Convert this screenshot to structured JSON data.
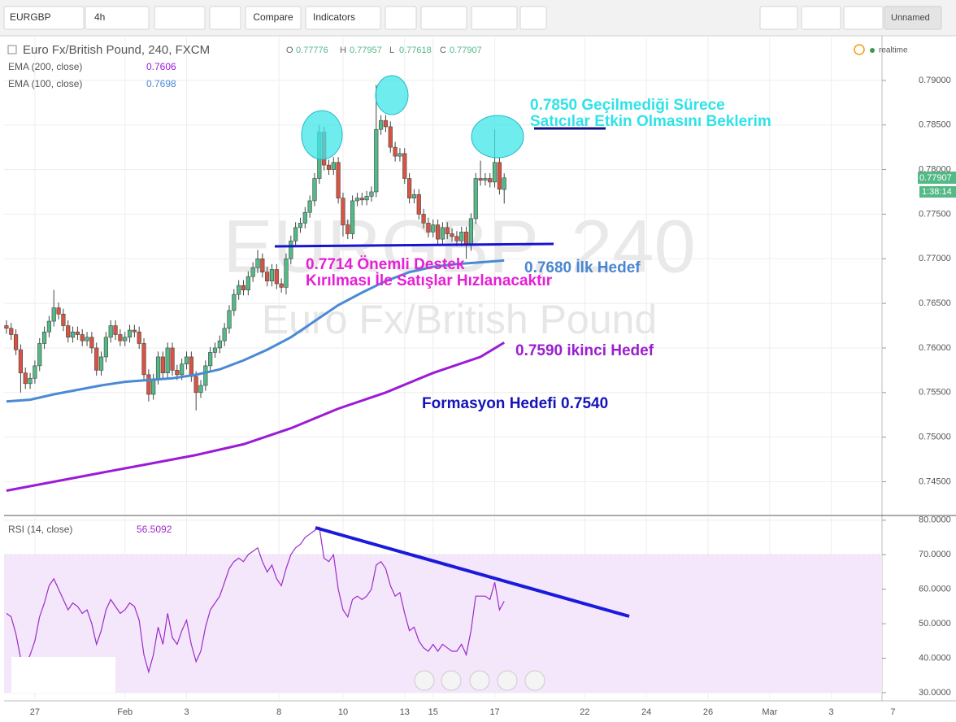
{
  "toolbar": {
    "symbol": "EURGBP",
    "interval": "4h",
    "compare": "Compare",
    "indicators": "Indicators",
    "layout": "Unnamed"
  },
  "chart_data": [
    {
      "type": "candlestick",
      "title": "Euro Fx/British Pound, 240, FXCM",
      "watermark": "EURGBP, 240",
      "watermark_name": "Euro Fx/British Pound",
      "ohlc_letters": [
        "O",
        "H",
        "L",
        "C"
      ],
      "status": "realtime",
      "countdown": "1:38:14",
      "up_color": "#53b987",
      "down_color": "#d75442",
      "xlim": [
        -0.5,
        189.5
      ],
      "ylim": [
        0.7414,
        0.795
      ],
      "yticks": [
        {
          "value": 0.745,
          "label": "0.74500"
        },
        {
          "value": 0.75,
          "label": "0.75000"
        },
        {
          "value": 0.755,
          "label": "0.75500"
        },
        {
          "value": 0.76,
          "label": "0.76000"
        },
        {
          "value": 0.765,
          "label": "0.76500"
        },
        {
          "value": 0.77,
          "label": "0.77000"
        },
        {
          "value": 0.775,
          "label": "0.77500"
        },
        {
          "value": 0.78,
          "label": "0.78000"
        },
        {
          "value": 0.785,
          "label": "0.78500"
        },
        {
          "value": 0.79,
          "label": "0.79000"
        }
      ],
      "grid": true,
      "candles": {
        "open": [
          0.7625,
          0.7622,
          0.7615,
          0.7598,
          0.7572,
          0.756,
          0.7566,
          0.758,
          0.7605,
          0.7618,
          0.763,
          0.7645,
          0.7638,
          0.7625,
          0.7612,
          0.7618,
          0.7615,
          0.7608,
          0.7612,
          0.76,
          0.7575,
          0.759,
          0.7612,
          0.7625,
          0.7615,
          0.7608,
          0.7612,
          0.762,
          0.7618,
          0.7605,
          0.757,
          0.7548,
          0.7565,
          0.759,
          0.7572,
          0.76,
          0.7575,
          0.757,
          0.7582,
          0.759,
          0.7568,
          0.755,
          0.7558,
          0.758,
          0.7595,
          0.76,
          0.7608,
          0.7622,
          0.7642,
          0.766,
          0.767,
          0.7665,
          0.768,
          0.769,
          0.77,
          0.7685,
          0.7675,
          0.7688,
          0.7672,
          0.7668,
          0.77,
          0.772,
          0.7735,
          0.774,
          0.7752,
          0.7765,
          0.779,
          0.7842,
          0.7805,
          0.78,
          0.7808,
          0.7768,
          0.7738,
          0.7728,
          0.7765,
          0.7768,
          0.7766,
          0.777,
          0.7775,
          0.7845,
          0.7855,
          0.7848,
          0.7825,
          0.7815,
          0.7818,
          0.779,
          0.7768,
          0.7772,
          0.775,
          0.774,
          0.773,
          0.7738,
          0.7722,
          0.7735,
          0.7728,
          0.7725,
          0.772,
          0.773,
          0.7715,
          0.7745,
          0.779,
          0.7788,
          0.779,
          0.7786,
          0.7808,
          0.77776
        ],
        "high": [
          0.7631,
          0.7628,
          0.7621,
          0.7604,
          0.7578,
          0.7572,
          0.7586,
          0.7611,
          0.7624,
          0.7636,
          0.7665,
          0.7651,
          0.7644,
          0.7631,
          0.7624,
          0.7624,
          0.7621,
          0.7618,
          0.7618,
          0.7606,
          0.7596,
          0.7618,
          0.7631,
          0.7631,
          0.7621,
          0.7618,
          0.7626,
          0.7626,
          0.7624,
          0.7611,
          0.7576,
          0.7571,
          0.7596,
          0.7596,
          0.7606,
          0.7606,
          0.7581,
          0.7588,
          0.7596,
          0.7596,
          0.7574,
          0.7564,
          0.7586,
          0.7601,
          0.7606,
          0.7614,
          0.7628,
          0.7648,
          0.7666,
          0.7676,
          0.7676,
          0.7686,
          0.7696,
          0.771,
          0.7706,
          0.7691,
          0.7694,
          0.7694,
          0.7678,
          0.7706,
          0.7726,
          0.7741,
          0.7746,
          0.7758,
          0.7771,
          0.7796,
          0.785,
          0.7848,
          0.7811,
          0.7814,
          0.7814,
          0.7774,
          0.7744,
          0.7771,
          0.7774,
          0.7774,
          0.7776,
          0.7781,
          0.7895,
          0.7861,
          0.7861,
          0.7854,
          0.7831,
          0.7824,
          0.7824,
          0.7796,
          0.7778,
          0.7778,
          0.7756,
          0.7746,
          0.7744,
          0.7744,
          0.7741,
          0.7741,
          0.7734,
          0.7731,
          0.7736,
          0.7736,
          0.7751,
          0.7796,
          0.781,
          0.7796,
          0.7796,
          0.7845,
          0.7814,
          0.77957
        ],
        "low": [
          0.7616,
          0.7609,
          0.7592,
          0.755,
          0.7554,
          0.7554,
          0.756,
          0.7574,
          0.7599,
          0.7612,
          0.7624,
          0.7632,
          0.7619,
          0.7606,
          0.7606,
          0.7609,
          0.7602,
          0.7602,
          0.7594,
          0.7569,
          0.7569,
          0.7584,
          0.7606,
          0.7609,
          0.7602,
          0.7602,
          0.7606,
          0.7612,
          0.7599,
          0.7564,
          0.754,
          0.7542,
          0.7559,
          0.7566,
          0.7566,
          0.7569,
          0.7564,
          0.7564,
          0.7576,
          0.7562,
          0.753,
          0.7544,
          0.7552,
          0.7574,
          0.7589,
          0.7594,
          0.7602,
          0.7616,
          0.7636,
          0.7654,
          0.7659,
          0.7659,
          0.7674,
          0.7684,
          0.7679,
          0.7669,
          0.7669,
          0.7666,
          0.7662,
          0.766,
          0.7694,
          0.7714,
          0.7729,
          0.7734,
          0.7746,
          0.7759,
          0.7784,
          0.7799,
          0.7794,
          0.7794,
          0.7762,
          0.7725,
          0.7722,
          0.7722,
          0.7759,
          0.776,
          0.776,
          0.7764,
          0.7769,
          0.7839,
          0.7842,
          0.7819,
          0.7809,
          0.7809,
          0.7784,
          0.7762,
          0.7762,
          0.7744,
          0.7734,
          0.7724,
          0.7724,
          0.7716,
          0.7716,
          0.7722,
          0.7719,
          0.7714,
          0.7714,
          0.77,
          0.7709,
          0.7739,
          0.7782,
          0.7782,
          0.778,
          0.778,
          0.7772,
          0.77618
        ],
        "close": [
          0.7622,
          0.7615,
          0.7598,
          0.7572,
          0.756,
          0.7566,
          0.758,
          0.7605,
          0.7618,
          0.763,
          0.7645,
          0.7638,
          0.7625,
          0.7612,
          0.7618,
          0.7615,
          0.7608,
          0.7612,
          0.76,
          0.7575,
          0.759,
          0.7612,
          0.7625,
          0.7615,
          0.7608,
          0.7612,
          0.762,
          0.7618,
          0.7605,
          0.757,
          0.7548,
          0.7565,
          0.759,
          0.7572,
          0.76,
          0.7575,
          0.757,
          0.7582,
          0.759,
          0.7568,
          0.755,
          0.7558,
          0.758,
          0.7595,
          0.76,
          0.7608,
          0.7622,
          0.7642,
          0.766,
          0.767,
          0.7665,
          0.768,
          0.769,
          0.77,
          0.7685,
          0.7675,
          0.7688,
          0.7672,
          0.7668,
          0.77,
          0.772,
          0.7735,
          0.774,
          0.7752,
          0.7765,
          0.779,
          0.7842,
          0.7805,
          0.78,
          0.7808,
          0.7768,
          0.7738,
          0.7728,
          0.7765,
          0.7768,
          0.7766,
          0.777,
          0.7775,
          0.7845,
          0.7855,
          0.7848,
          0.7825,
          0.7815,
          0.7818,
          0.779,
          0.7768,
          0.7772,
          0.775,
          0.774,
          0.773,
          0.7738,
          0.7722,
          0.7735,
          0.7728,
          0.7725,
          0.772,
          0.773,
          0.7715,
          0.7745,
          0.779,
          0.7788,
          0.779,
          0.7786,
          0.7808,
          0.7778,
          0.77907
        ]
      },
      "series": [
        {
          "name": "EMA (200, close)",
          "color": "#9b1bd6",
          "x": [
            0,
            10,
            20,
            30,
            40,
            50,
            60,
            70,
            80,
            90,
            100,
            105
          ],
          "values": [
            0.744,
            0.745,
            0.746,
            0.747,
            0.748,
            0.7492,
            0.751,
            0.7532,
            0.755,
            0.7572,
            0.759,
            0.7606
          ]
        },
        {
          "name": "EMA (100, close)",
          "color": "#4a8ad4",
          "x": [
            0,
            5,
            10,
            15,
            20,
            25,
            30,
            35,
            40,
            45,
            50,
            55,
            60,
            65,
            70,
            75,
            80,
            85,
            90,
            95,
            100,
            105
          ],
          "values": [
            0.754,
            0.7542,
            0.7548,
            0.7553,
            0.7558,
            0.7562,
            0.7564,
            0.7566,
            0.757,
            0.7576,
            0.7586,
            0.7598,
            0.7612,
            0.763,
            0.7648,
            0.7662,
            0.7675,
            0.7685,
            0.7691,
            0.7694,
            0.7696,
            0.7698
          ]
        }
      ],
      "annotations": [
        {
          "lines": [
            "0.7850 Geçilmediği Sürece",
            "Satıcılar Etkin Olmasını Beklerim"
          ],
          "color": "#2fe3e8"
        },
        {
          "lines": [
            "0.7714 Önemli Destek",
            "Kırılması İle Satışlar Hızlanacaktır"
          ],
          "color": "#e61fd6"
        },
        {
          "lines": [
            "0.7680 İlk Hedef"
          ],
          "color": "#4a86d0"
        },
        {
          "lines": [
            "0.7590 ikinci Hedef"
          ],
          "color": "#9a20cf"
        },
        {
          "lines": [
            "Formasyon Hedefi 0.7540"
          ],
          "color": "#1414b8"
        }
      ]
    },
    {
      "type": "line",
      "name": "RSI (14, close)",
      "color": "#9b2dc9",
      "band": [
        30,
        70
      ],
      "band_color": "#f4e6fb",
      "xlim": [
        -0.5,
        189.5
      ],
      "ylim": [
        28.1,
        80.9
      ],
      "yticks": [
        {
          "value": 30,
          "label": "30.0000"
        },
        {
          "value": 40,
          "label": "40.0000"
        },
        {
          "value": 50,
          "label": "50.0000"
        },
        {
          "value": 60,
          "label": "60.0000"
        },
        {
          "value": 70,
          "label": "70.0000"
        },
        {
          "value": 80,
          "label": "80.0000"
        }
      ],
      "xticks": [
        {
          "value": 6,
          "label": "27"
        },
        {
          "value": 25,
          "label": "Feb"
        },
        {
          "value": 38,
          "label": "3"
        },
        {
          "value": 57.5,
          "label": "8"
        },
        {
          "value": 71,
          "label": "10"
        },
        {
          "value": 84,
          "label": "13"
        },
        {
          "value": 90,
          "label": "15"
        },
        {
          "value": 103,
          "label": "17"
        },
        {
          "value": 122,
          "label": "22"
        },
        {
          "value": 135,
          "label": "24"
        },
        {
          "value": 148,
          "label": "26"
        },
        {
          "value": 161,
          "label": "Mar"
        },
        {
          "value": 174,
          "label": "3"
        },
        {
          "value": 187,
          "label": "7"
        }
      ],
      "values": [
        53,
        52,
        47,
        40,
        38,
        41,
        45,
        52,
        56,
        61,
        63,
        60,
        57,
        54,
        56,
        55,
        53,
        54,
        50,
        44,
        48,
        54,
        57,
        55,
        53,
        54,
        56,
        55,
        51,
        41,
        36,
        41,
        49,
        44,
        53,
        46,
        44,
        48,
        51,
        44,
        39,
        42,
        49,
        54,
        56,
        58,
        62,
        66,
        68,
        69,
        68,
        70,
        71,
        72,
        68,
        65,
        67,
        63,
        61,
        66,
        70,
        72,
        73,
        75,
        76,
        77,
        78,
        69,
        68,
        70,
        60,
        54,
        52,
        57,
        58,
        57,
        58,
        60,
        67,
        68,
        66,
        61,
        58,
        59,
        53,
        48,
        49,
        45,
        43,
        42,
        44,
        42,
        44,
        43,
        42,
        42,
        44,
        41,
        48,
        58,
        58,
        58,
        57,
        62,
        54,
        56.5092
      ]
    }
  ]
}
